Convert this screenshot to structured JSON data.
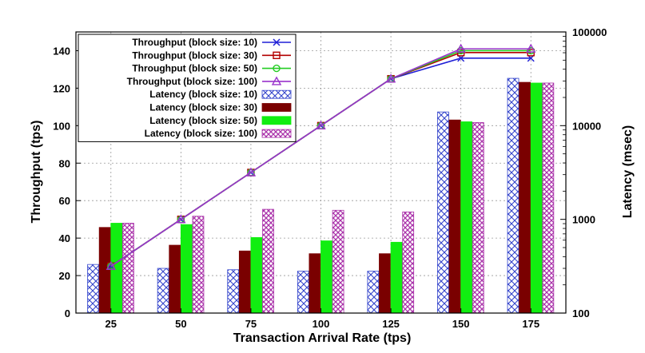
{
  "chart_data": {
    "type": "bar",
    "xlabel": "Transaction Arrival Rate (tps)",
    "ylabel": "Throughput (tps)",
    "y2label": "Latency (msec)",
    "categories": [
      "25",
      "50",
      "75",
      "100",
      "125",
      "150",
      "175"
    ],
    "ylim": [
      0,
      150
    ],
    "yticks": [
      0,
      20,
      40,
      60,
      80,
      100,
      120,
      140
    ],
    "y2lim": [
      100,
      100000
    ],
    "y2scale": "log",
    "y2ticks": [
      100,
      1000,
      10000,
      100000
    ],
    "y2ticklabels": [
      "100",
      "1000",
      "10000",
      "100000"
    ],
    "grid": "dashed",
    "legend_position": "top-left",
    "throughput_series": [
      {
        "name": "Throughput (block size: 10)",
        "marker": "x",
        "color": "#1f1fd6",
        "values": [
          25,
          50,
          75,
          100,
          125,
          136,
          136
        ]
      },
      {
        "name": "Throughput (block size: 30)",
        "marker": "square",
        "color": "#b30000",
        "values": [
          25,
          50,
          75,
          100,
          125,
          139,
          139
        ]
      },
      {
        "name": "Throughput (block size: 50)",
        "marker": "circle",
        "color": "#22cc22",
        "values": [
          25,
          50,
          75,
          100,
          125,
          140,
          140
        ]
      },
      {
        "name": "Throughput (block size: 100)",
        "marker": "triangle",
        "color": "#9933cc",
        "values": [
          25,
          50,
          75,
          100,
          125,
          141,
          141
        ]
      }
    ],
    "latency_series": [
      {
        "name": "Latency (block size: 10)",
        "fill": "crosshatch-blue",
        "color": "#3344cc",
        "values": [
          330,
          300,
          290,
          280,
          280,
          14000,
          32000
        ]
      },
      {
        "name": "Latency (block size: 30)",
        "fill": "solid",
        "color": "#7a0000",
        "values": [
          820,
          530,
          460,
          430,
          430,
          11500,
          29000
        ]
      },
      {
        "name": "Latency (block size: 50)",
        "fill": "solid",
        "color": "#11ee11",
        "values": [
          910,
          880,
          640,
          590,
          570,
          11000,
          28500
        ]
      },
      {
        "name": "Latency (block size: 100)",
        "fill": "crosshatch-purple",
        "color": "#aa33aa",
        "values": [
          910,
          1080,
          1280,
          1250,
          1200,
          10800,
          28500
        ]
      }
    ]
  }
}
